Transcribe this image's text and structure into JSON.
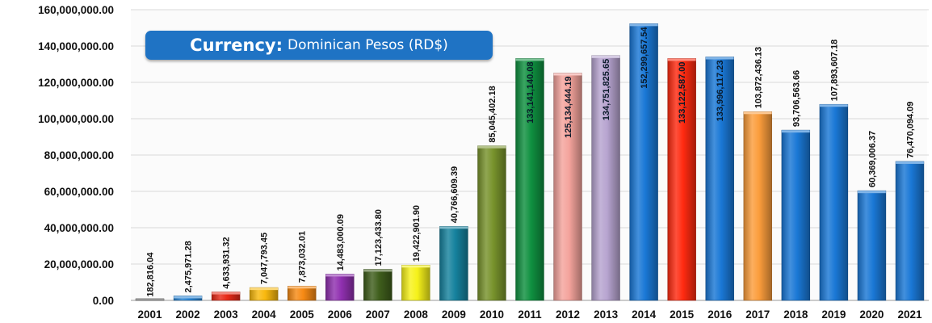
{
  "badge": {
    "key": "Currency:",
    "value": "Dominican Pesos (RD$)"
  },
  "chart_data": {
    "type": "bar",
    "title": "",
    "xlabel": "",
    "ylabel": "",
    "ylim": [
      0,
      160000000
    ],
    "yticks": [
      0,
      20000000,
      40000000,
      60000000,
      80000000,
      100000000,
      120000000,
      140000000,
      160000000
    ],
    "ytick_labels": [
      "0.00",
      "20,000,000.00",
      "40,000,000.00",
      "60,000,000.00",
      "80,000,000.00",
      "100,000,000.00",
      "120,000,000.00",
      "140,000,000.00",
      "160,000,000.00"
    ],
    "grid": true,
    "categories": [
      "2001",
      "2002",
      "2003",
      "2004",
      "2005",
      "2006",
      "2007",
      "2008",
      "2009",
      "2010",
      "2011",
      "2012",
      "2013",
      "2014",
      "2015",
      "2016",
      "2017",
      "2018",
      "2019",
      "2020",
      "2021"
    ],
    "values": [
      182816.04,
      2475971.28,
      4633931.32,
      7047793.45,
      7873032.01,
      14483000.09,
      17123433.8,
      19422901.9,
      40766609.39,
      85045402.18,
      133141140.08,
      125134444.19,
      134751825.65,
      152299657.54,
      133122587.0,
      133996117.23,
      103872436.13,
      93706563.66,
      107893607.18,
      60369006.37,
      76470094.09
    ],
    "value_labels": [
      "182,816.04",
      "2,475,971.28",
      "4,633,931.32",
      "7,047,793.45",
      "7,873,032.01",
      "14,483,000.09",
      "17,123,433.80",
      "19,422,901.90",
      "40,766,609.39",
      "85,045,402.18",
      "133,141,140.08",
      "125,134,444.19",
      "134,751,825.65",
      "152,299,657.54",
      "133,122,587.00",
      "133,996,117.23",
      "103,872,436.13",
      "93,706,563.66",
      "107,893,607.18",
      "60,369,006.37",
      "76,470,094.09"
    ],
    "colors": [
      "#3c3c3c",
      "#2a86d6",
      "#e82a18",
      "#f9b90e",
      "#f78a14",
      "#9030b0",
      "#3f5e1c",
      "#f6f21a",
      "#16829e",
      "#78932c",
      "#0f9040",
      "#f4a39c",
      "#b7a4d0",
      "#1a78d6",
      "#ff2a10",
      "#1a78d6",
      "#fb9d3c",
      "#1a78d6",
      "#1a78d6",
      "#1a78d6",
      "#1a78d6"
    ],
    "label_inside_categories": [
      "2011",
      "2012",
      "2013",
      "2014",
      "2015",
      "2016"
    ]
  }
}
